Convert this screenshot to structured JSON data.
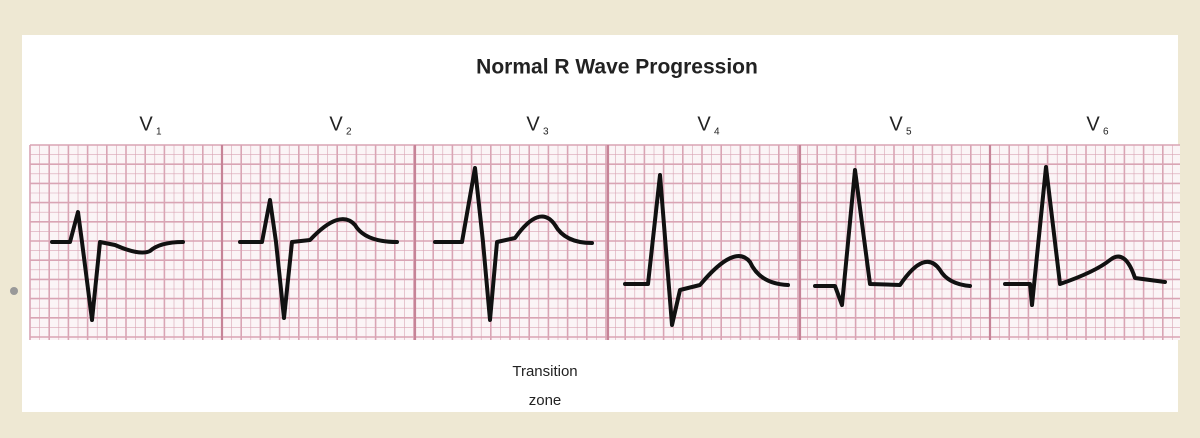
{
  "title": "Normal R Wave Progression",
  "leads": [
    {
      "name": "V",
      "subscript": "1"
    },
    {
      "name": "V",
      "subscript": "2"
    },
    {
      "name": "V",
      "subscript": "3"
    },
    {
      "name": "V",
      "subscript": "4"
    },
    {
      "name": "V",
      "subscript": "5"
    },
    {
      "name": "V",
      "subscript": "6"
    }
  ],
  "annotation": {
    "line1": "Transition",
    "line2": "zone"
  }
}
